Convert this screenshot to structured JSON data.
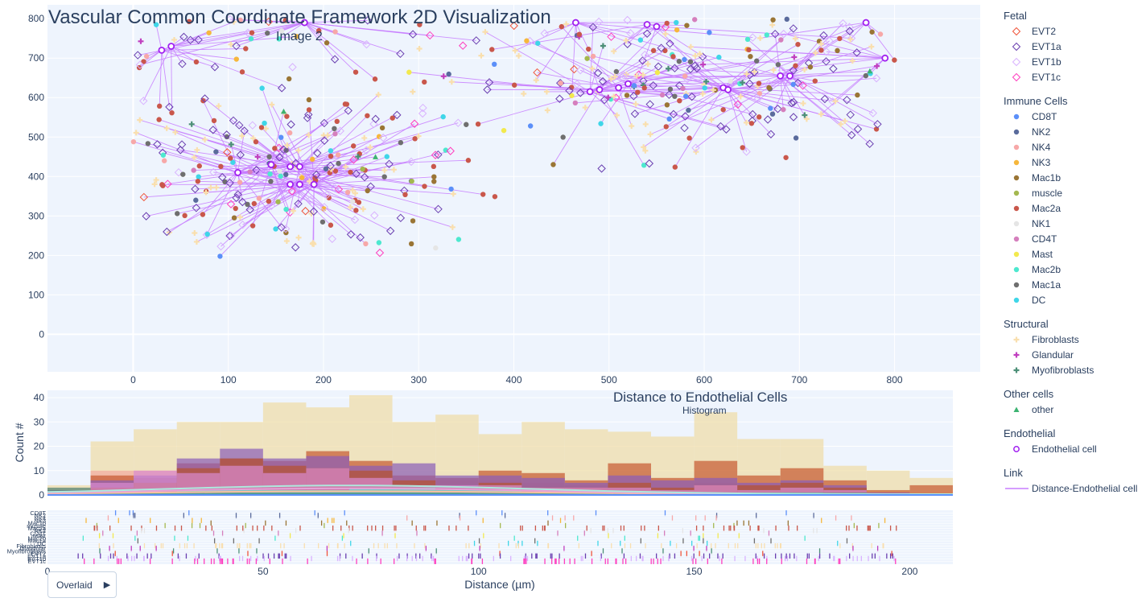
{
  "title": "Vascular Common Coordinate Framework 2D Visualization",
  "scatter_subtitle": "Image 2",
  "hist_title": "Distance to Endothelial Cells",
  "hist_subtitle": "Histogram",
  "hist_ylabel": "Count #",
  "hist_xlabel": "Distance (µm)",
  "overlay_button": {
    "label": "Overlaid",
    "icon": "play-icon"
  },
  "legend": [
    {
      "group": "Fetal",
      "items": [
        {
          "name": "EVT2",
          "symbol": "diamond-open",
          "color": "#ef553b"
        },
        {
          "name": "EVT1a",
          "symbol": "diamond-open",
          "color": "#6a3fb0"
        },
        {
          "name": "EVT1b",
          "symbol": "diamond-open",
          "color": "#d9b3ff"
        },
        {
          "name": "EVT1c",
          "symbol": "diamond-open",
          "color": "#ff3fbf"
        }
      ]
    },
    {
      "group": "Immune Cells",
      "items": [
        {
          "name": "CD8T",
          "symbol": "circle",
          "color": "#5b8ff9"
        },
        {
          "name": "NK2",
          "symbol": "circle",
          "color": "#5a6b9c"
        },
        {
          "name": "NK4",
          "symbol": "circle",
          "color": "#f7a8a8"
        },
        {
          "name": "NK3",
          "symbol": "circle",
          "color": "#f6b73c"
        },
        {
          "name": "Mac1b",
          "symbol": "circle",
          "color": "#9a7535"
        },
        {
          "name": "muscle",
          "symbol": "circle",
          "color": "#a4b84f"
        },
        {
          "name": "Mac2a",
          "symbol": "circle",
          "color": "#c9574b"
        },
        {
          "name": "NK1",
          "symbol": "circle",
          "color": "#e5e5e5"
        },
        {
          "name": "CD4T",
          "symbol": "circle",
          "color": "#d57fbd"
        },
        {
          "name": "Mast",
          "symbol": "circle",
          "color": "#f2e94e"
        },
        {
          "name": "Mac2b",
          "symbol": "circle",
          "color": "#4de8cf"
        },
        {
          "name": "Mac1a",
          "symbol": "circle",
          "color": "#6f6f6f"
        },
        {
          "name": "DC",
          "symbol": "circle",
          "color": "#3fd6e8"
        }
      ]
    },
    {
      "group": "Structural",
      "items": [
        {
          "name": "Fibroblasts",
          "symbol": "cross",
          "color": "#f9dfae"
        },
        {
          "name": "Glandular",
          "symbol": "cross",
          "color": "#c03fbf"
        },
        {
          "name": "Myofibroblasts",
          "symbol": "cross",
          "color": "#4c8f77"
        }
      ]
    },
    {
      "group": "Other cells",
      "items": [
        {
          "name": "other",
          "symbol": "triangle",
          "color": "#3cb371"
        }
      ]
    },
    {
      "group": "Endothelial",
      "items": [
        {
          "name": "Endothelial cell",
          "symbol": "circle-open",
          "color": "#a020f0"
        }
      ]
    },
    {
      "group": "Link",
      "items": [
        {
          "name": "Distance-Endothelial cell",
          "symbol": "line",
          "color": "#c77dff"
        }
      ]
    }
  ],
  "chart_data": [
    {
      "type": "scatter",
      "title": "Image 2",
      "xlim": [
        -90,
        890
      ],
      "ylim": [
        -95,
        835
      ],
      "xticks": [
        0,
        100,
        200,
        300,
        400,
        500,
        600,
        700,
        800
      ],
      "yticks": [
        0,
        100,
        200,
        300,
        400,
        500,
        600,
        700,
        800
      ],
      "grid": true,
      "endothelial_cells": [
        {
          "x": 30,
          "y": 720
        },
        {
          "x": 40,
          "y": 730
        },
        {
          "x": 180,
          "y": 790
        },
        {
          "x": 465,
          "y": 790
        },
        {
          "x": 540,
          "y": 785
        },
        {
          "x": 550,
          "y": 780
        },
        {
          "x": 770,
          "y": 790
        },
        {
          "x": 790,
          "y": 700
        },
        {
          "x": 480,
          "y": 615
        },
        {
          "x": 490,
          "y": 620
        },
        {
          "x": 510,
          "y": 625
        },
        {
          "x": 520,
          "y": 635
        },
        {
          "x": 620,
          "y": 625
        },
        {
          "x": 625,
          "y": 620
        },
        {
          "x": 680,
          "y": 655
        },
        {
          "x": 690,
          "y": 655
        },
        {
          "x": 110,
          "y": 410
        },
        {
          "x": 145,
          "y": 430
        },
        {
          "x": 165,
          "y": 425
        },
        {
          "x": 175,
          "y": 425
        },
        {
          "x": 165,
          "y": 380
        },
        {
          "x": 175,
          "y": 380
        },
        {
          "x": 190,
          "y": 380
        }
      ]
    },
    {
      "type": "bar",
      "title": "Distance to Endothelial Cells",
      "subtitle": "Histogram",
      "xlabel": "Distance (µm)",
      "ylabel": "Count #",
      "xlim": [
        0,
        210
      ],
      "ylim": [
        0,
        43
      ],
      "xticks": [
        0,
        50,
        100,
        150,
        200
      ],
      "yticks": [
        0,
        10,
        20,
        30,
        40
      ],
      "bin_width": 10,
      "bin_start": 0,
      "series": [
        {
          "name": "Fibroblasts",
          "color": "#f0dba4",
          "values": [
            4,
            22,
            27,
            30,
            30,
            38,
            36,
            41,
            30,
            33,
            25,
            30,
            27,
            26,
            24,
            34,
            23,
            23,
            12,
            10,
            7
          ]
        },
        {
          "name": "NK4",
          "color": "#f4a9a0",
          "values": [
            3,
            10,
            10,
            10,
            8,
            6,
            5,
            6,
            5,
            6,
            6,
            5,
            4,
            4,
            3,
            5,
            4,
            4,
            3,
            1,
            0
          ]
        },
        {
          "name": "Mac2a",
          "color": "#c6572f",
          "values": [
            2,
            8,
            7,
            13,
            15,
            14,
            18,
            14,
            8,
            7,
            10,
            9,
            6,
            13,
            7,
            14,
            8,
            11,
            6,
            2,
            4
          ]
        },
        {
          "name": "EVT1a",
          "color": "#8a5cb8",
          "values": [
            2,
            6,
            8,
            15,
            19,
            15,
            16,
            12,
            13,
            8,
            8,
            7,
            5,
            8,
            6,
            7,
            5,
            6,
            4,
            1,
            0
          ]
        },
        {
          "name": "Mac1b",
          "color": "#b5532f",
          "values": [
            1,
            3,
            5,
            11,
            15,
            12,
            11,
            10,
            6,
            3,
            5,
            3,
            3,
            5,
            3,
            4,
            4,
            5,
            3,
            0,
            0
          ]
        },
        {
          "name": "CD4T",
          "color": "#d98ad0",
          "values": [
            1,
            5,
            10,
            9,
            12,
            9,
            11,
            7,
            4,
            4,
            4,
            3,
            3,
            3,
            2,
            4,
            2,
            3,
            2,
            0,
            0
          ]
        },
        {
          "name": "Mac2b",
          "color": "#5ee7d0",
          "values": [
            0,
            1,
            1,
            2,
            2,
            2,
            2,
            3,
            3,
            2,
            2,
            1,
            1,
            1,
            1,
            1,
            1,
            1,
            0,
            0,
            0
          ]
        },
        {
          "name": "Myofibroblasts",
          "color": "#4c8f77",
          "values": [
            3,
            2,
            1,
            1,
            1,
            1,
            1,
            1,
            1,
            1,
            1,
            1,
            1,
            1,
            1,
            1,
            1,
            1,
            1,
            0,
            0
          ]
        }
      ],
      "rug_rows": [
        "CD8T",
        "NK2",
        "NK4",
        "NK3",
        "Mac1b",
        "muscle",
        "Mac2a",
        "NK1",
        "CD4T",
        "Mast",
        "Mac2b",
        "Mac1a",
        "DC",
        "Fibroblasts",
        "Glandular",
        "Myofibroblasts",
        "EVT2",
        "EVT1a",
        "EVT1b",
        "EVT1c"
      ]
    }
  ]
}
